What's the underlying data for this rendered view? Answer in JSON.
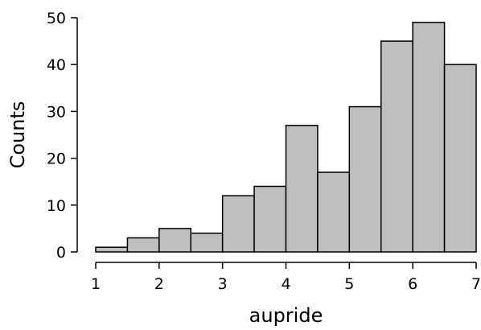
{
  "chart_data": {
    "type": "bar",
    "xlabel": "aupride",
    "ylabel": "Counts",
    "xlim": [
      1,
      7
    ],
    "ylim": [
      0,
      50
    ],
    "x_ticks": [
      "1",
      "2",
      "3",
      "4",
      "5",
      "6",
      "7"
    ],
    "y_ticks": [
      "0",
      "10",
      "20",
      "30",
      "40",
      "50"
    ],
    "bin_width": 0.5,
    "bin_starts": [
      1.0,
      1.5,
      2.0,
      2.5,
      3.0,
      3.5,
      4.0,
      4.5,
      5.0,
      5.5,
      6.0,
      6.5
    ],
    "values": [
      1,
      3,
      5,
      4,
      12,
      14,
      27,
      17,
      31,
      45,
      49,
      40
    ],
    "bar_color": "#bfbfbf",
    "edge_color": "#000000",
    "grid": false
  }
}
